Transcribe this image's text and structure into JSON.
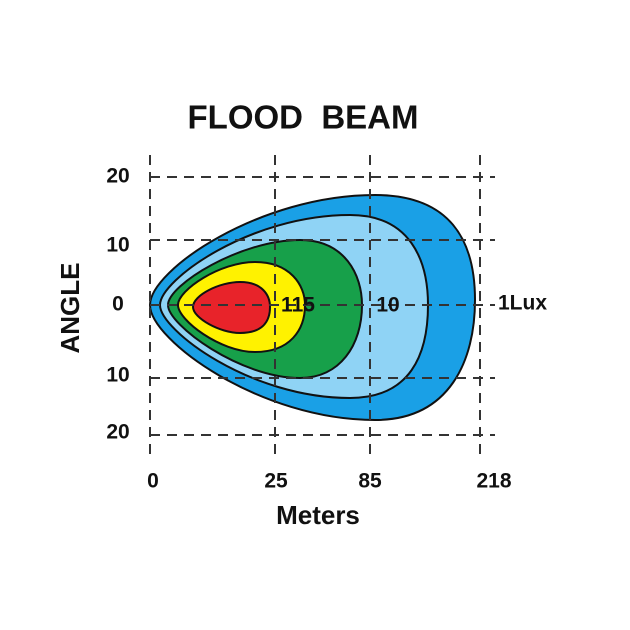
{
  "title": "FLOOD  BEAM",
  "y_axis": {
    "label": "ANGLE",
    "ticks": [
      "20",
      "10",
      "0",
      "10",
      "20"
    ]
  },
  "x_axis": {
    "label": "Meters",
    "ticks": [
      "0",
      "25",
      "85",
      "218"
    ]
  },
  "contour_labels": [
    "115",
    "10",
    "1Lux"
  ]
}
